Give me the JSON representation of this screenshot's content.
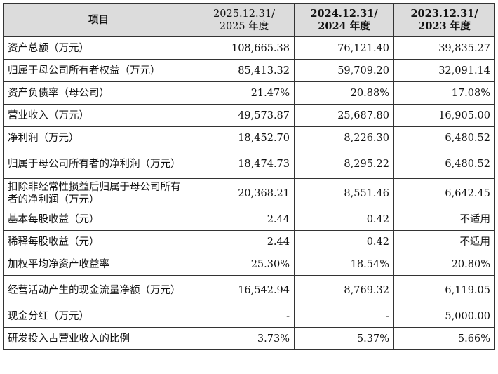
{
  "header": {
    "label": "项目",
    "col1": [
      "2025.12.31/",
      "2025 年度"
    ],
    "col2": [
      "2024.12.31/",
      "2024 年度"
    ],
    "col3": [
      "2023.12.31/",
      "2023 年度"
    ]
  },
  "rows": [
    {
      "label": "资产总额（万元）",
      "v": [
        "108,665.38",
        "76,121.40",
        "39,835.27"
      ]
    },
    {
      "label": "归属于母公司所有者权益（万元）",
      "v": [
        "85,413.32",
        "59,709.20",
        "32,091.14"
      ]
    },
    {
      "label": "资产负债率（母公司）",
      "v": [
        "21.47%",
        "20.88%",
        "17.08%"
      ]
    },
    {
      "label": "营业收入（万元）",
      "v": [
        "49,573.87",
        "25,687.80",
        "16,905.00"
      ]
    },
    {
      "label": "净利润（万元）",
      "v": [
        "18,452.70",
        "8,226.30",
        "6,480.52"
      ]
    },
    {
      "label": "归属于母公司所有者的净利润（万元）",
      "v": [
        "18,474.73",
        "8,295.22",
        "6,480.52"
      ]
    },
    {
      "label": "扣除非经常性损益后归属于母公司所有者的净利润（万元）",
      "v": [
        "20,368.21",
        "8,551.46",
        "6,642.45"
      ]
    },
    {
      "label": "基本每股收益（元）",
      "v": [
        "2.44",
        "0.42",
        "不适用"
      ]
    },
    {
      "label": "稀释每股收益（元）",
      "v": [
        "2.44",
        "0.42",
        "不适用"
      ]
    },
    {
      "label": "加权平均净资产收益率",
      "v": [
        "25.30%",
        "18.54%",
        "20.80%"
      ]
    },
    {
      "label": "经营活动产生的现金流量净额（万元）",
      "v": [
        "16,542.94",
        "8,769.32",
        "6,119.05"
      ]
    },
    {
      "label": "现金分红（万元）",
      "v": [
        "-",
        "-",
        "5,000.00"
      ]
    },
    {
      "label": "研发投入占营业收入的比例",
      "v": [
        "3.73%",
        "5.37%",
        "5.66%"
      ]
    }
  ]
}
